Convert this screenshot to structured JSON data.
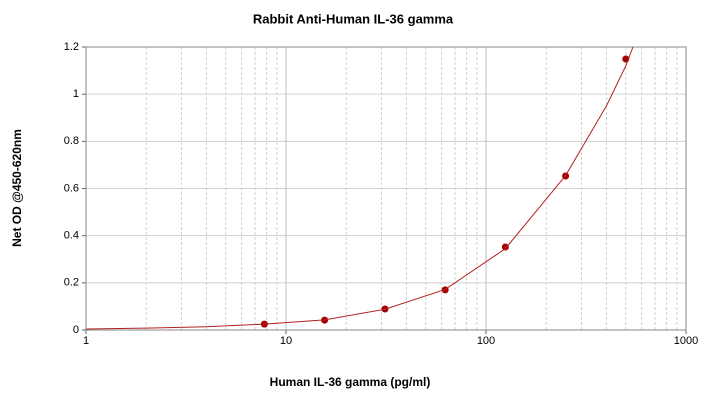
{
  "chart_data": {
    "type": "scatter",
    "title": "Rabbit Anti-Human IL-36 gamma",
    "x_label": "Human IL-36 gamma (pg/ml)",
    "y_label": "Net OD @450-620nm",
    "x_scale": "log",
    "xlim": [
      1,
      1000
    ],
    "ylim": [
      0,
      1.2
    ],
    "xticks": [
      1,
      10,
      100,
      1000
    ],
    "x_minor_grid": [
      2,
      3,
      4,
      5,
      6,
      7,
      8,
      9,
      20,
      30,
      40,
      50,
      60,
      70,
      80,
      90,
      200,
      300,
      400,
      500,
      600,
      700,
      800,
      900
    ],
    "yticks": [
      0,
      0.2,
      0.4,
      0.6,
      0.8,
      1,
      1.2
    ],
    "grid": true,
    "series": [
      {
        "kind": "points",
        "color": "#a50000",
        "x": [
          7.8,
          15.6,
          31.25,
          62.5,
          125,
          250,
          500
        ],
        "values": [
          0.025,
          0.042,
          0.089,
          0.17,
          0.352,
          0.653,
          1.149
        ]
      },
      {
        "kind": "curve",
        "color": "#b22222",
        "x": [
          1,
          2,
          4,
          7.8,
          15.6,
          31.25,
          62.5,
          125,
          250,
          400,
          500,
          543
        ],
        "values": [
          0.004,
          0.008,
          0.014,
          0.025,
          0.043,
          0.088,
          0.172,
          0.345,
          0.655,
          0.95,
          1.12,
          1.2
        ]
      }
    ]
  }
}
